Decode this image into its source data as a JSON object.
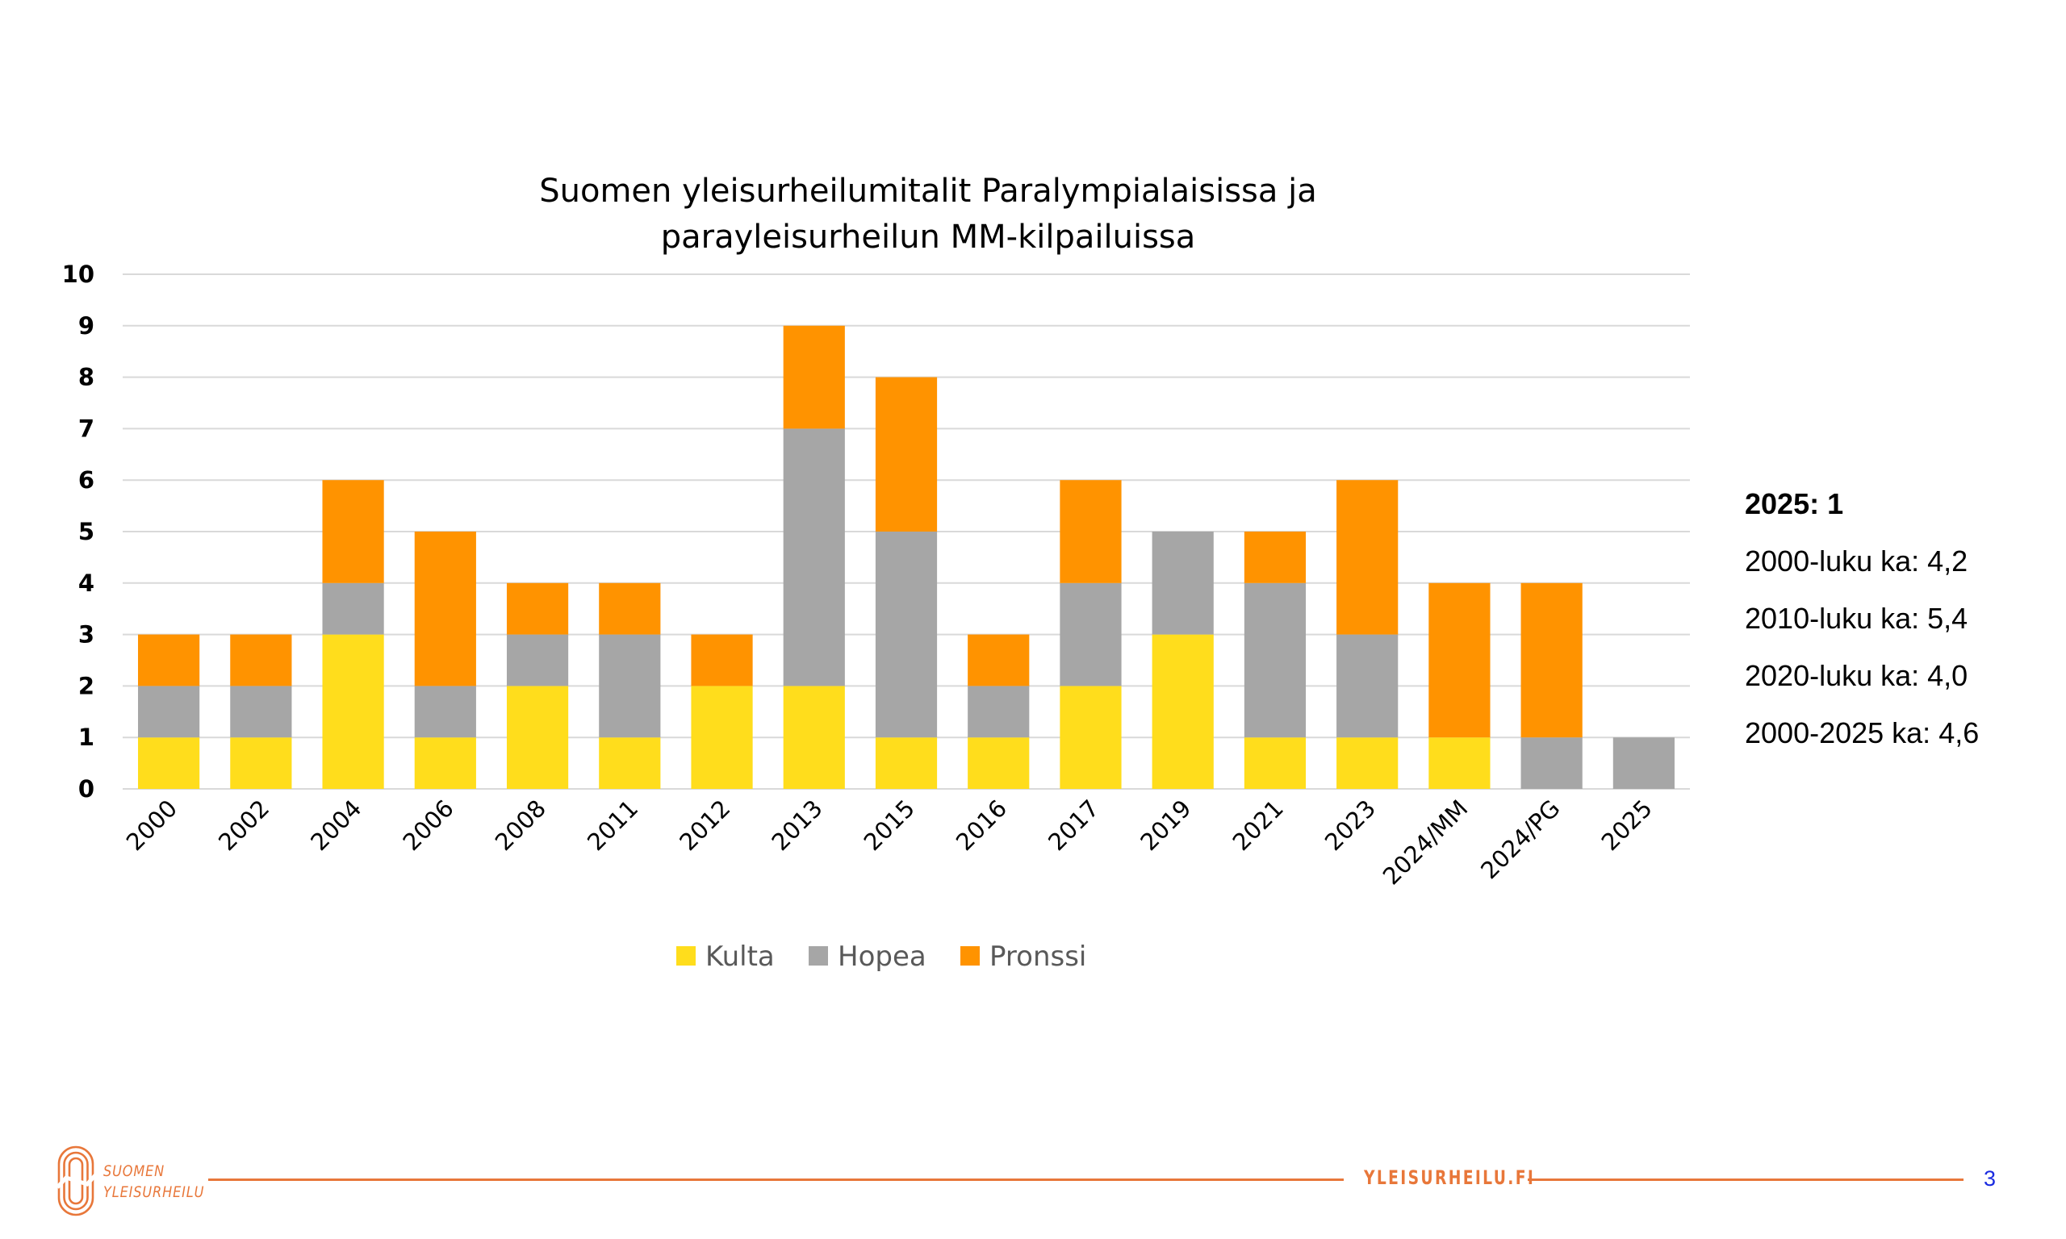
{
  "chart_data": {
    "type": "bar",
    "stacked": true,
    "title": [
      "Suomen yleisurheilumitalit Paralympialaisissa ja",
      "parayleisurheilun MM-kilpailuissa"
    ],
    "xlabel": "",
    "ylabel": "",
    "ylim": [
      0,
      10
    ],
    "yticks": [
      "0",
      "1",
      "2",
      "3",
      "4",
      "5",
      "6",
      "7",
      "8",
      "9",
      "10"
    ],
    "grid": true,
    "legend_position": "bottom",
    "categories": [
      "2000",
      "2002",
      "2004",
      "2006",
      "2008",
      "2011",
      "2012",
      "2013",
      "2015",
      "2016",
      "2017",
      "2019",
      "2021",
      "2023",
      "2024/MM",
      "2024/PG",
      "2025"
    ],
    "series": [
      {
        "name": "Kulta",
        "color": "#FFDD1C",
        "values": [
          1,
          1,
          3,
          1,
          2,
          1,
          2,
          2,
          1,
          1,
          2,
          3,
          1,
          1,
          1,
          0,
          0
        ]
      },
      {
        "name": "Hopea",
        "color": "#A6A6A6",
        "values": [
          1,
          1,
          1,
          1,
          1,
          2,
          0,
          5,
          4,
          1,
          2,
          2,
          3,
          2,
          0,
          1,
          1
        ]
      },
      {
        "name": "Pronssi",
        "color": "#FF9300",
        "values": [
          1,
          1,
          2,
          3,
          1,
          1,
          1,
          2,
          3,
          1,
          2,
          0,
          1,
          3,
          3,
          3,
          0
        ]
      }
    ]
  },
  "annotations": [
    {
      "text": "2025: 1",
      "bold": true
    },
    {
      "text": "2000-luku ka: 4,2",
      "bold": false
    },
    {
      "text": "2010-luku ka: 5,4",
      "bold": false
    },
    {
      "text": "2020-luku ka: 4,0",
      "bold": false
    },
    {
      "text": "2000-2025 ka: 4,6",
      "bold": false
    }
  ],
  "footer": {
    "logo_line1": "SUOMEN",
    "logo_line2": "YLEISURHEILU",
    "url": "YLEISURHEILU.FI",
    "page_number": "3",
    "accent_color": "#E8773A"
  }
}
